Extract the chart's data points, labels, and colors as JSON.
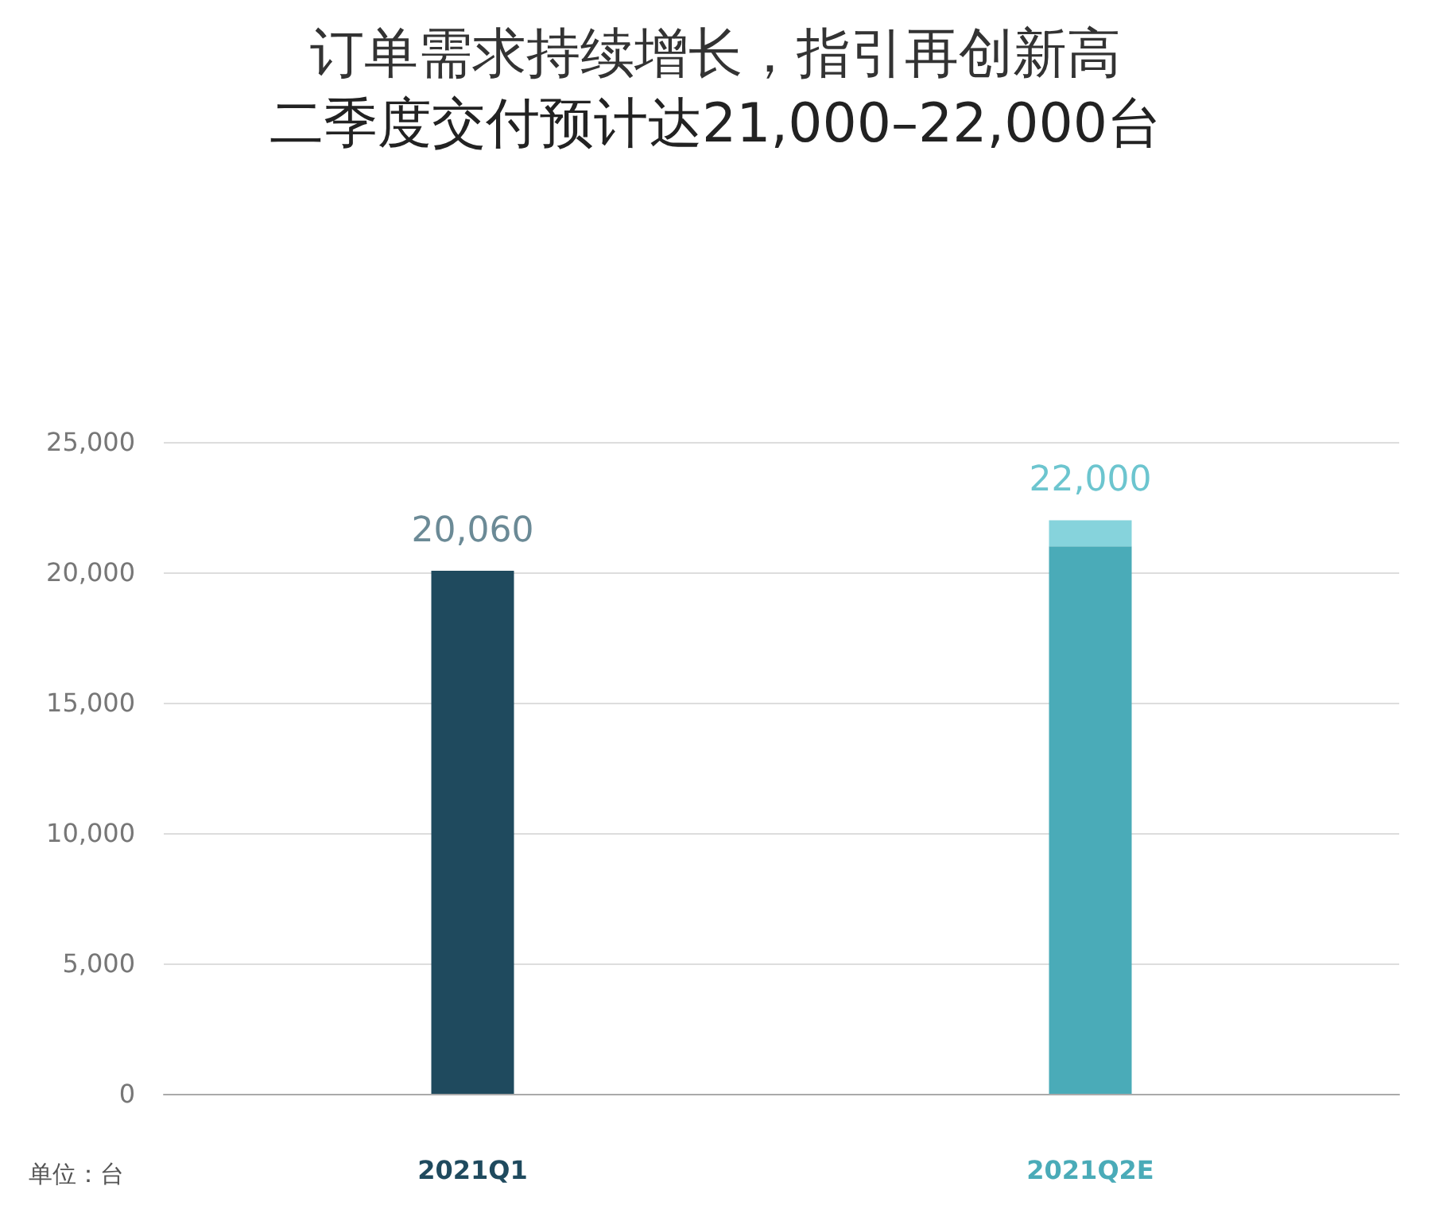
{
  "chart_data": {
    "type": "bar",
    "title": "订单需求持续增长，指引再创新高",
    "subtitle": "二季度交付预计达21,000–22,000台",
    "categories": [
      "2021Q1",
      "2021Q2E"
    ],
    "stacked": true,
    "series": [
      {
        "colors": [
          "#1f4a5e",
          "#4aabb8"
        ],
        "values": [
          20060,
          21000
        ]
      },
      {
        "color": "#86d3dc",
        "values": [
          null,
          1000
        ]
      }
    ],
    "totals": [
      "20,060",
      "22,000"
    ],
    "ylim": [
      0,
      25000
    ],
    "yticks": [
      0,
      {
        "value": 5000,
        "label": "5,000"
      },
      {
        "value": 10000,
        "label": "10,000"
      },
      {
        "value": 15000,
        "label": "15,000"
      },
      {
        "value": 20000,
        "label": "20,000"
      },
      {
        "value": 25000,
        "label": "25,000"
      }
    ],
    "grid": "y",
    "annotations": [
      "单位：台"
    ]
  }
}
